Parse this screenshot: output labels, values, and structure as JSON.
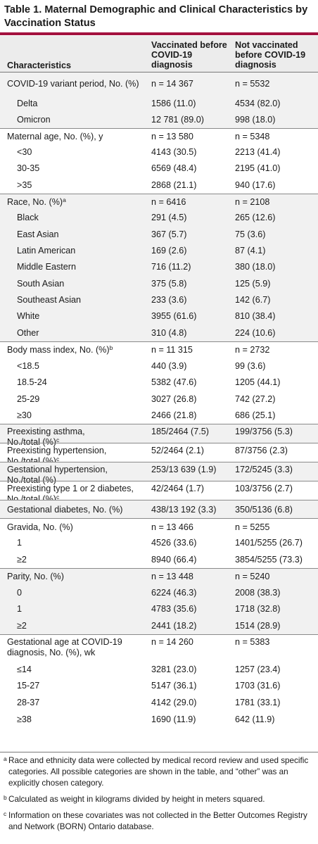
{
  "title": "Table 1. Maternal Demographic and Clinical Characteristics by Vaccination Status",
  "headers": {
    "c1": "Characteristics",
    "c2": "Vaccinated before COVID-19 diagnosis",
    "c3": "Not vaccinated before COVID-19 diagnosis"
  },
  "rows": [
    {
      "c1": "COVID-19 variant period, No. (%)",
      "c2": "n = 14 367",
      "c3": "n = 5532"
    },
    {
      "c1": "Delta",
      "c2": "1586 (11.0)",
      "c3": "4534 (82.0)"
    },
    {
      "c1": "Omicron",
      "c2": "12 781 (89.0)",
      "c3": "998 (18.0)"
    },
    {
      "c1": "Maternal age, No. (%), y",
      "c2": "n = 13 580",
      "c3": "n = 5348"
    },
    {
      "c1": "<30",
      "c2": "4143 (30.5)",
      "c3": "2213 (41.4)"
    },
    {
      "c1": "30-35",
      "c2": "6569 (48.4)",
      "c3": "2195 (41.0)"
    },
    {
      "c1": ">35",
      "c2": "2868 (21.1)",
      "c3": "940 (17.6)"
    },
    {
      "c1": "Race, No. (%)",
      "sup": "a",
      "c2": "n = 6416",
      "c3": "n = 2108"
    },
    {
      "c1": "Black",
      "c2": "291 (4.5)",
      "c3": "265 (12.6)"
    },
    {
      "c1": "East Asian",
      "c2": "367 (5.7)",
      "c3": "75 (3.6)"
    },
    {
      "c1": "Latin American",
      "c2": "169 (2.6)",
      "c3": "87 (4.1)"
    },
    {
      "c1": "Middle Eastern",
      "c2": "716 (11.2)",
      "c3": "380 (18.0)"
    },
    {
      "c1": "South Asian",
      "c2": "375 (5.8)",
      "c3": "125 (5.9)"
    },
    {
      "c1": "Southeast Asian",
      "c2": "233 (3.6)",
      "c3": "142 (6.7)"
    },
    {
      "c1": "White",
      "c2": "3955 (61.6)",
      "c3": "810 (38.4)"
    },
    {
      "c1": "Other",
      "c2": "310 (4.8)",
      "c3": "224 (10.6)"
    },
    {
      "c1": "Body mass index, No. (%)",
      "sup": "b",
      "c2": "n = 11 315",
      "c3": "n = 2732"
    },
    {
      "c1": "<18.5",
      "c2": "440 (3.9)",
      "c3": "99 (3.6)"
    },
    {
      "c1": "18.5-24",
      "c2": "5382 (47.6)",
      "c3": "1205 (44.1)"
    },
    {
      "c1": "25-29",
      "c2": "3027 (26.8)",
      "c3": "742 (27.2)"
    },
    {
      "c1": "≥30",
      "c2": "2466 (21.8)",
      "c3": "686 (25.1)"
    },
    {
      "c1": "Preexisting asthma,",
      "c1b": "No./total (%)",
      "sup": "c",
      "c2": "185/2464 (7.5)",
      "c3": "199/3756 (5.3)"
    },
    {
      "c1": "Preexisting hypertension,",
      "c1b": "No./total (%)",
      "sup": "c",
      "c2": "52/2464 (2.1)",
      "c3": "87/3756 (2.3)"
    },
    {
      "c1": "Gestational hypertension,",
      "c1b": "No./total (%)",
      "c2": "253/13 639 (1.9)",
      "c3": "172/5245 (3.3)"
    },
    {
      "c1": "Preexisting type 1 or 2 diabetes,",
      "c1b": "No./total (%)",
      "sup": "c",
      "c2": "42/2464 (1.7)",
      "c3": "103/3756 (2.7)"
    },
    {
      "c1": "Gestational diabetes, No. (%)",
      "c2": "438/13 192 (3.3)",
      "c3": "350/5136 (6.8)"
    },
    {
      "c1": "Gravida, No. (%)",
      "c2": "n = 13 466",
      "c3": "n = 5255"
    },
    {
      "c1": "1",
      "c2": "4526 (33.6)",
      "c3": "1401/5255 (26.7)"
    },
    {
      "c1": "≥2",
      "c2": "8940 (66.4)",
      "c3": "3854/5255 (73.3)"
    },
    {
      "c1": "Parity, No. (%)",
      "c2": "n = 13 448",
      "c3": "n = 5240"
    },
    {
      "c1": "0",
      "c2": "6224 (46.3)",
      "c3": "2008 (38.3)"
    },
    {
      "c1": "1",
      "c2": "4783 (35.6)",
      "c3": "1718 (32.8)"
    },
    {
      "c1": "≥2",
      "c2": "2441 (18.2)",
      "c3": "1514 (28.9)"
    },
    {
      "c1": "Gestational age at COVID-19",
      "c1b": "diagnosis, No. (%), wk",
      "c2": "n = 14 260",
      "c3": "n = 5383"
    },
    {
      "c1": "≤14",
      "c2": "3281 (23.0)",
      "c3": "1257 (23.4)"
    },
    {
      "c1": "15-27",
      "c2": "5147 (36.1)",
      "c3": "1703 (31.6)"
    },
    {
      "c1": "28-37",
      "c2": "4142 (29.0)",
      "c3": "1781 (33.1)"
    },
    {
      "c1": "≥38",
      "c2": "1690 (11.9)",
      "c3": "642 (11.9)"
    }
  ],
  "footnotes": [
    {
      "mark": "a",
      "text": "Race and ethnicity data were collected by medical record review and used specific categories. All possible categories are shown in the table, and “other” was an explicitly chosen category."
    },
    {
      "mark": "b",
      "text": "Calculated as weight in kilograms divided by height in meters squared."
    },
    {
      "mark": "c",
      "text": "Information on these covariates was not collected in the Better Outcomes Registry and Network (BORN) Ontario database."
    }
  ]
}
